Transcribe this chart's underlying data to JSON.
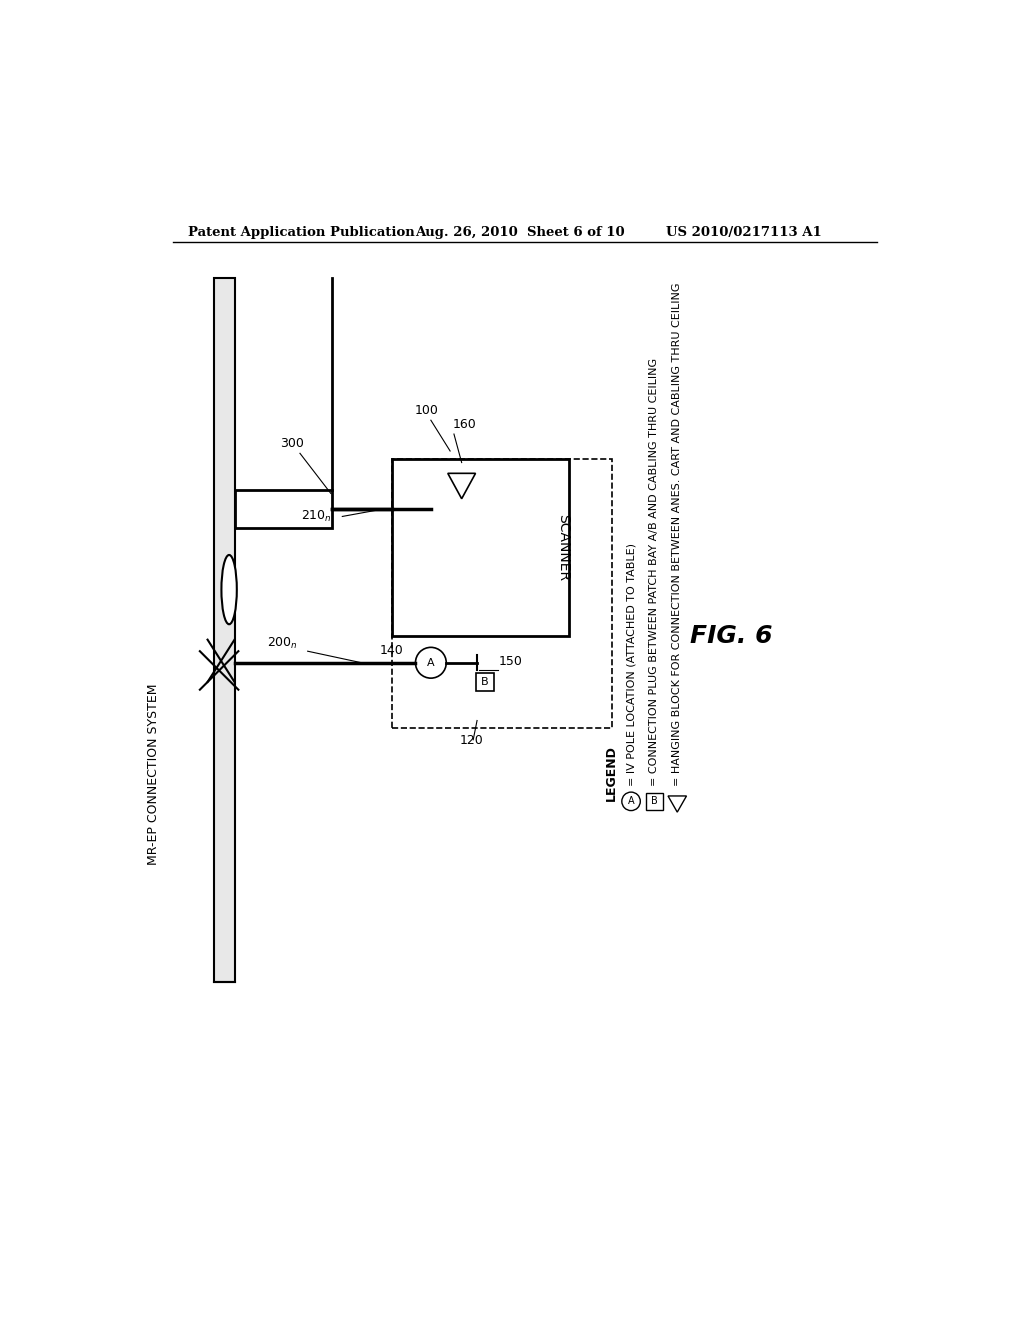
{
  "bg_color": "#ffffff",
  "header_left": "Patent Application Publication",
  "header_mid": "Aug. 26, 2010  Sheet 6 of 10",
  "header_right": "US 2010/0217113 A1",
  "fig_label": "FIG. 6",
  "title_vertical": "MR-EP CONNECTION SYSTEM",
  "legend_title": "LEGEND",
  "legend_line1": "= IV POLE LOCATION (ATTACHED TO TABLE)",
  "legend_line2": "= CONNECTION PLUG BETWEEN PATCH BAY A/B AND CABLING THRU CEILING",
  "legend_line3": "= HANGING BLOCK FOR CONNECTION BETWEEN ANES. CART AND CABLING THRU CEILING"
}
